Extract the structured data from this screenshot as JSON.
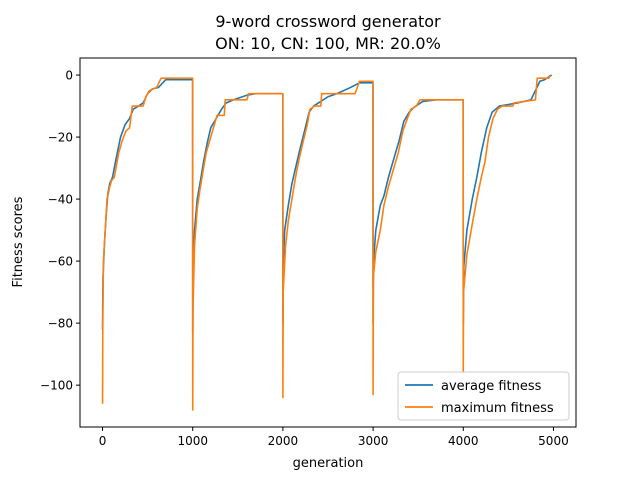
{
  "chart_data": {
    "type": "line",
    "title": "9-word crossword generator",
    "subtitle": "ON: 10, CN: 100, MR: 20.0%",
    "xlabel": "generation",
    "ylabel": "Fitness scores",
    "xlim": [
      -250,
      5250
    ],
    "ylim": [
      -113.5,
      5.5
    ],
    "xticks": [
      0,
      1000,
      2000,
      3000,
      4000,
      5000
    ],
    "yticks": [
      0,
      -20,
      -40,
      -60,
      -80,
      -100
    ],
    "grid": false,
    "legend_position": "lower-right",
    "series": [
      {
        "name": "average fitness",
        "color": "#1f77b4",
        "points": [
          [
            0,
            -82
          ],
          [
            5,
            -65
          ],
          [
            20,
            -55
          ],
          [
            40,
            -45
          ],
          [
            60,
            -38
          ],
          [
            80,
            -35
          ],
          [
            110,
            -33
          ],
          [
            150,
            -27
          ],
          [
            200,
            -20
          ],
          [
            250,
            -16
          ],
          [
            300,
            -14
          ],
          [
            340,
            -11
          ],
          [
            400,
            -10
          ],
          [
            450,
            -9
          ],
          [
            500,
            -6
          ],
          [
            550,
            -4.5
          ],
          [
            620,
            -4
          ],
          [
            700,
            -1.5
          ],
          [
            999,
            -1.5
          ],
          [
            1000,
            -83
          ],
          [
            1005,
            -65
          ],
          [
            1020,
            -50
          ],
          [
            1050,
            -40
          ],
          [
            1080,
            -35
          ],
          [
            1120,
            -28
          ],
          [
            1160,
            -22
          ],
          [
            1200,
            -17
          ],
          [
            1260,
            -14
          ],
          [
            1320,
            -11
          ],
          [
            1370,
            -9
          ],
          [
            1450,
            -8
          ],
          [
            1600,
            -6.5
          ],
          [
            1700,
            -6
          ],
          [
            1999,
            -6
          ],
          [
            2000,
            -80
          ],
          [
            2005,
            -60
          ],
          [
            2020,
            -50
          ],
          [
            2060,
            -42
          ],
          [
            2100,
            -35
          ],
          [
            2140,
            -30
          ],
          [
            2180,
            -25
          ],
          [
            2240,
            -18
          ],
          [
            2290,
            -12
          ],
          [
            2340,
            -10
          ],
          [
            2420,
            -8.5
          ],
          [
            2500,
            -7
          ],
          [
            2600,
            -6
          ],
          [
            2750,
            -4
          ],
          [
            2850,
            -2.5
          ],
          [
            2999,
            -2.5
          ],
          [
            3000,
            -80
          ],
          [
            3005,
            -60
          ],
          [
            3030,
            -50
          ],
          [
            3080,
            -42
          ],
          [
            3120,
            -39
          ],
          [
            3170,
            -33
          ],
          [
            3230,
            -27
          ],
          [
            3290,
            -21
          ],
          [
            3340,
            -15
          ],
          [
            3400,
            -12
          ],
          [
            3450,
            -10.5
          ],
          [
            3550,
            -8.5
          ],
          [
            3700,
            -8
          ],
          [
            3999,
            -8
          ],
          [
            4000,
            -80
          ],
          [
            4005,
            -62
          ],
          [
            4040,
            -50
          ],
          [
            4100,
            -40
          ],
          [
            4150,
            -33
          ],
          [
            4200,
            -25
          ],
          [
            4260,
            -17
          ],
          [
            4320,
            -12
          ],
          [
            4400,
            -10
          ],
          [
            4500,
            -9.5
          ],
          [
            4600,
            -9
          ],
          [
            4750,
            -8
          ],
          [
            4850,
            -2
          ],
          [
            4900,
            -1.5
          ],
          [
            4980,
            0
          ]
        ]
      },
      {
        "name": "maximum fitness",
        "color": "#ff7f0e",
        "points": [
          [
            0,
            -106
          ],
          [
            3,
            -80
          ],
          [
            10,
            -60
          ],
          [
            30,
            -50
          ],
          [
            50,
            -40
          ],
          [
            80,
            -36
          ],
          [
            100,
            -34
          ],
          [
            130,
            -33
          ],
          [
            180,
            -25
          ],
          [
            220,
            -21
          ],
          [
            260,
            -18
          ],
          [
            300,
            -17
          ],
          [
            330,
            -10
          ],
          [
            450,
            -10
          ],
          [
            480,
            -7
          ],
          [
            520,
            -5
          ],
          [
            600,
            -4
          ],
          [
            650,
            -1
          ],
          [
            999,
            -1
          ],
          [
            1000,
            -108
          ],
          [
            1003,
            -75
          ],
          [
            1020,
            -55
          ],
          [
            1050,
            -43
          ],
          [
            1080,
            -37
          ],
          [
            1120,
            -30
          ],
          [
            1150,
            -25
          ],
          [
            1200,
            -20
          ],
          [
            1240,
            -16
          ],
          [
            1270,
            -13
          ],
          [
            1350,
            -13
          ],
          [
            1360,
            -8
          ],
          [
            1600,
            -8
          ],
          [
            1620,
            -6
          ],
          [
            1999,
            -6
          ],
          [
            2000,
            -104
          ],
          [
            2003,
            -70
          ],
          [
            2030,
            -55
          ],
          [
            2060,
            -47
          ],
          [
            2100,
            -40
          ],
          [
            2140,
            -33
          ],
          [
            2180,
            -27
          ],
          [
            2220,
            -22
          ],
          [
            2270,
            -16
          ],
          [
            2300,
            -11
          ],
          [
            2350,
            -10
          ],
          [
            2420,
            -10
          ],
          [
            2430,
            -6
          ],
          [
            2800,
            -6
          ],
          [
            2850,
            -2
          ],
          [
            2999,
            -2
          ],
          [
            3000,
            -103
          ],
          [
            3003,
            -65
          ],
          [
            3030,
            -57
          ],
          [
            3080,
            -50
          ],
          [
            3120,
            -42
          ],
          [
            3170,
            -36
          ],
          [
            3230,
            -30
          ],
          [
            3280,
            -25
          ],
          [
            3330,
            -18
          ],
          [
            3380,
            -14
          ],
          [
            3420,
            -11
          ],
          [
            3480,
            -10
          ],
          [
            3520,
            -8
          ],
          [
            3999,
            -8
          ],
          [
            4000,
            -96
          ],
          [
            4003,
            -70
          ],
          [
            4040,
            -58
          ],
          [
            4100,
            -48
          ],
          [
            4150,
            -40
          ],
          [
            4200,
            -33
          ],
          [
            4240,
            -28
          ],
          [
            4280,
            -20
          ],
          [
            4330,
            -14
          ],
          [
            4380,
            -11
          ],
          [
            4430,
            -10
          ],
          [
            4550,
            -10
          ],
          [
            4560,
            -9
          ],
          [
            4800,
            -8
          ],
          [
            4820,
            -1
          ],
          [
            4950,
            -1
          ],
          [
            4960,
            0
          ]
        ]
      }
    ]
  }
}
